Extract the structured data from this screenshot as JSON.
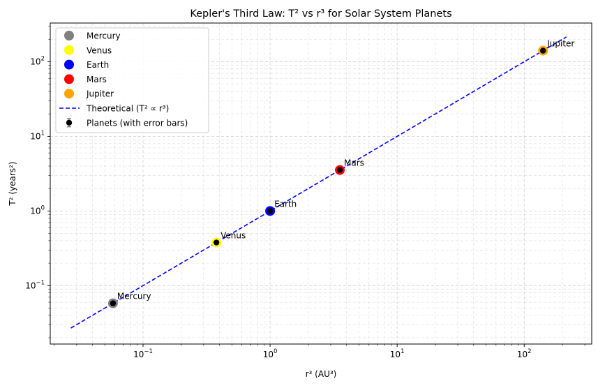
{
  "chart_data": {
    "type": "scatter",
    "title": "Kepler's Third Law: T² vs r³ for Solar System Planets",
    "xlabel": "r³ (AU³)",
    "ylabel": "T² (years²)",
    "xscale": "log",
    "yscale": "log",
    "xlim": [
      0.0186,
      340
    ],
    "ylim": [
      0.0165,
      330
    ],
    "grid": true,
    "legend_position": "upper left",
    "x_ticks": [
      {
        "value": 0.1,
        "base": "10",
        "exp": "−1"
      },
      {
        "value": 1,
        "base": "10",
        "exp": "0"
      },
      {
        "value": 10,
        "base": "10",
        "exp": "1"
      },
      {
        "value": 100,
        "base": "10",
        "exp": "2"
      }
    ],
    "y_ticks": [
      {
        "value": 0.1,
        "base": "10",
        "exp": "−1"
      },
      {
        "value": 1,
        "base": "10",
        "exp": "0"
      },
      {
        "value": 10,
        "base": "10",
        "exp": "1"
      },
      {
        "value": 100,
        "base": "10",
        "exp": "2"
      }
    ],
    "planets": [
      {
        "name": "Mercury",
        "color": "#808080",
        "x": 0.058,
        "y": 0.058
      },
      {
        "name": "Venus",
        "color": "#ffff00",
        "x": 0.378,
        "y": 0.378
      },
      {
        "name": "Earth",
        "color": "#0000ff",
        "x": 1.0,
        "y": 1.0
      },
      {
        "name": "Mars",
        "color": "#ff0000",
        "x": 3.54,
        "y": 3.54
      },
      {
        "name": "Jupiter",
        "color": "#ffa500",
        "x": 140.7,
        "y": 140.7
      }
    ],
    "theoretical": {
      "name": "Theoretical (T² ∝ r³)",
      "color": "#0000ff",
      "style": "dashed",
      "x_range": [
        0.027,
        215
      ]
    },
    "error_series": {
      "name": "Planets (with error bars)",
      "color": "#000000"
    }
  }
}
